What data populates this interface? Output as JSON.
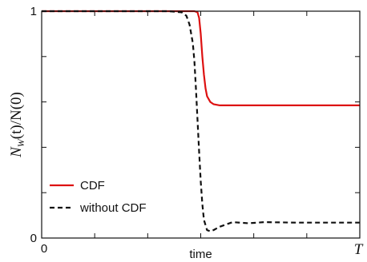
{
  "chart_data": {
    "type": "line",
    "title": "",
    "xlabel": "time",
    "ylabel": "N_W(t)/N(0)",
    "ylabel_parts": {
      "main": "N",
      "sub": "W",
      "rest": "(t)/N(0)"
    },
    "xlim": [
      0,
      1
    ],
    "ylim": [
      0,
      1
    ],
    "x_tick_labels": {
      "left": "0",
      "right": "T"
    },
    "y_tick_labels": {
      "top": "1",
      "bottom": "0"
    },
    "grid": false,
    "legend_placement": "bottom-left",
    "series": [
      {
        "name": "CDF",
        "color": "#dd1111",
        "dash": "solid",
        "x": [
          0.0,
          0.4,
          0.48,
          0.49,
          0.495,
          0.5,
          0.505,
          0.51,
          0.515,
          0.52,
          0.53,
          0.54,
          0.56,
          0.6,
          0.7,
          0.85,
          1.0
        ],
        "y": [
          1.0,
          1.0,
          1.0,
          0.995,
          0.97,
          0.9,
          0.8,
          0.72,
          0.66,
          0.625,
          0.6,
          0.59,
          0.585,
          0.585,
          0.585,
          0.585,
          0.585
        ]
      },
      {
        "name": "without CDF",
        "color": "#111111",
        "dash": "dashed",
        "x": [
          0.0,
          0.4,
          0.44,
          0.455,
          0.465,
          0.475,
          0.48,
          0.485,
          0.49,
          0.495,
          0.5,
          0.505,
          0.51,
          0.52,
          0.53,
          0.54,
          0.56,
          0.6,
          0.65,
          0.7,
          0.8,
          0.9,
          1.0
        ],
        "y": [
          1.0,
          1.0,
          0.995,
          0.98,
          0.94,
          0.86,
          0.78,
          0.66,
          0.52,
          0.38,
          0.25,
          0.15,
          0.08,
          0.035,
          0.03,
          0.035,
          0.05,
          0.07,
          0.065,
          0.07,
          0.068,
          0.068,
          0.068
        ]
      }
    ]
  }
}
